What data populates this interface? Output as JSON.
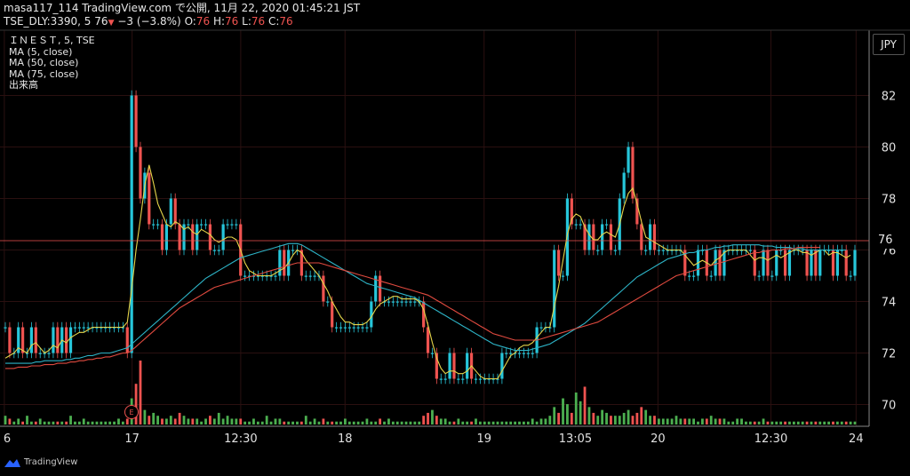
{
  "header": {
    "line1": "masa117_114 TradingView.com で公開, 11月 22, 2020 01:45:21 JST",
    "symbol": "TSE_DLY:3390, 5",
    "last": "76",
    "arrow": "▼",
    "change": "−3 (−3.8%)",
    "o_label": "O:",
    "o_val": "76",
    "h_label": "H:",
    "h_val": "76",
    "l_label": "L:",
    "l_val": "76",
    "c_label": "C:",
    "c_val": "76"
  },
  "legend": {
    "title": "ＩＮＥＳＴ, 5, TSE",
    "ma5": "MA (5, close)",
    "ma50": "MA (50, close)",
    "ma75": "MA (75, close)",
    "volume": "出来高"
  },
  "currency": "JPY",
  "price_tag": "76",
  "earnings_marker": "E",
  "branding": "TradingView",
  "colors": {
    "background": "#000000",
    "up": "#26c6da",
    "down": "#ef5350",
    "vol_up": "#4caf50",
    "vol_down": "#ef5350",
    "ma5": "#e5d44a",
    "ma50": "#2db3c6",
    "ma75": "#e04a3f",
    "grid": "#2a1010"
  },
  "chart_data": {
    "type": "candlestick",
    "y_ticks": [
      70,
      72,
      74,
      76,
      78,
      80,
      82
    ],
    "ylim": [
      69.5,
      83.5
    ],
    "x_ticks": [
      "6",
      "17",
      "12:30",
      "18",
      "19",
      "13:05",
      "20",
      "12:30",
      "24"
    ],
    "current_price": 76,
    "series": [
      {
        "name": "price",
        "values": [
          73,
          72,
          72,
          73,
          72,
          72,
          73,
          72,
          72,
          72,
          72,
          73,
          72,
          73,
          72,
          73,
          73,
          73,
          73,
          73,
          73,
          73,
          73,
          73,
          73,
          73,
          73,
          73,
          72,
          82,
          80,
          78,
          79,
          77,
          77,
          77,
          76,
          77,
          78,
          77,
          76,
          77,
          77,
          76,
          77,
          77,
          77,
          76,
          76,
          76,
          77,
          77,
          77,
          77,
          75,
          75,
          75,
          75,
          75,
          75,
          75,
          75,
          75,
          76,
          75,
          76,
          76,
          76,
          75,
          75,
          75,
          75,
          75,
          74,
          74,
          73,
          73,
          73,
          73,
          73,
          73,
          73,
          73,
          73,
          74,
          75,
          74,
          74,
          74,
          74,
          74,
          74,
          74,
          74,
          74,
          74,
          73,
          72,
          72,
          71,
          71,
          71,
          72,
          71,
          71,
          71,
          72,
          71,
          71,
          71,
          71,
          71,
          71,
          71,
          72,
          72,
          72,
          72,
          72,
          72,
          72,
          72,
          73,
          73,
          73,
          73,
          76,
          75,
          75,
          78,
          77,
          77,
          77,
          76,
          77,
          76,
          76,
          77,
          77,
          76,
          76,
          78,
          79,
          80,
          78,
          77,
          76,
          76,
          77,
          76,
          76,
          76,
          76,
          76,
          76,
          76,
          75,
          75,
          75,
          76,
          76,
          75,
          75,
          76,
          75,
          76,
          76,
          76,
          76,
          76,
          76,
          76,
          75,
          75,
          76,
          75,
          75,
          76,
          76,
          75,
          76,
          76,
          76,
          76,
          75,
          76,
          75,
          76,
          76,
          76,
          75,
          76,
          76,
          75,
          75,
          76
        ]
      },
      {
        "name": "MA (5, close)",
        "values": [
          71.8,
          71.9,
          72,
          72.2,
          72.1,
          72,
          72.3,
          72.4,
          72.2,
          72,
          72.1,
          72.3,
          72.2,
          72.5,
          72.4,
          72.6,
          72.7,
          72.8,
          72.8,
          72.9,
          73,
          73,
          73,
          73,
          73,
          73,
          73,
          73,
          73.2,
          74.5,
          76,
          77.2,
          78.5,
          79.3,
          78.6,
          77.8,
          77.4,
          77,
          76.9,
          77.1,
          77,
          76.8,
          76.9,
          76.7,
          76.6,
          76.8,
          76.7,
          76.6,
          76.4,
          76.3,
          76.4,
          76.5,
          76.5,
          76.4,
          76,
          75.5,
          75.2,
          75.1,
          75,
          75,
          75,
          75,
          75.1,
          75.2,
          75.3,
          75.5,
          75.8,
          76,
          75.9,
          75.6,
          75.4,
          75.2,
          75,
          74.7,
          74.4,
          74,
          73.7,
          73.4,
          73.2,
          73.2,
          73.1,
          73.1,
          73.1,
          73.2,
          73.4,
          73.7,
          73.9,
          74,
          74.1,
          74.2,
          74.2,
          74.1,
          74.1,
          74.1,
          74.1,
          74,
          73.7,
          73.1,
          72.4,
          71.8,
          71.4,
          71.2,
          71.3,
          71.3,
          71.2,
          71.2,
          71.3,
          71.5,
          71.3,
          71.1,
          71,
          71,
          71,
          71,
          71.3,
          71.6,
          71.9,
          72,
          72.2,
          72.3,
          72.3,
          72.4,
          72.6,
          72.8,
          73,
          73,
          73.8,
          74.6,
          75.6,
          76.6,
          77.2,
          77.4,
          77.3,
          76.9,
          76.6,
          76.4,
          76.4,
          76.6,
          76.7,
          76.6,
          76.5,
          77,
          77.7,
          78.2,
          78.4,
          77.8,
          77.1,
          76.5,
          76.4,
          76.3,
          76.2,
          76.1,
          76,
          76,
          76,
          76,
          75.8,
          75.6,
          75.4,
          75.5,
          75.6,
          75.5,
          75.4,
          75.6,
          75.7,
          75.9,
          76,
          76,
          76,
          76,
          76,
          75.8,
          75.6,
          75.7,
          75.7,
          75.6,
          75.7,
          75.8,
          75.7,
          75.8,
          75.9,
          76,
          76,
          75.9,
          75.9,
          75.8,
          75.9,
          76,
          76,
          75.8,
          75.9,
          75.9,
          75.8,
          75.7,
          75.8
        ]
      },
      {
        "name": "MA (50, close)",
        "values": [
          71.6,
          71.6,
          71.6,
          71.6,
          71.6,
          71.6,
          71.6,
          71.65,
          71.65,
          71.7,
          71.7,
          71.7,
          71.7,
          71.7,
          71.75,
          71.75,
          71.8,
          71.8,
          71.85,
          71.9,
          71.9,
          71.95,
          72,
          72,
          72,
          72.05,
          72.1,
          72.15,
          72.2,
          72.35,
          72.5,
          72.65,
          72.8,
          72.95,
          73.1,
          73.25,
          73.4,
          73.55,
          73.7,
          73.85,
          74,
          74.15,
          74.3,
          74.45,
          74.6,
          74.75,
          74.9,
          75,
          75.1,
          75.2,
          75.3,
          75.4,
          75.5,
          75.6,
          75.7,
          75.75,
          75.8,
          75.85,
          75.9,
          75.95,
          76,
          76.05,
          76.1,
          76.15,
          76.2,
          76.25,
          76.25,
          76.25,
          76.2,
          76.1,
          76,
          75.9,
          75.8,
          75.7,
          75.6,
          75.5,
          75.4,
          75.3,
          75.2,
          75.1,
          75,
          74.9,
          74.8,
          74.7,
          74.65,
          74.6,
          74.55,
          74.5,
          74.45,
          74.4,
          74.35,
          74.3,
          74.25,
          74.2,
          74.15,
          74.05,
          73.95,
          73.85,
          73.75,
          73.65,
          73.55,
          73.45,
          73.35,
          73.25,
          73.15,
          73.05,
          72.95,
          72.85,
          72.75,
          72.65,
          72.55,
          72.45,
          72.35,
          72.3,
          72.25,
          72.2,
          72.15,
          72.1,
          72.1,
          72.1,
          72.1,
          72.15,
          72.2,
          72.25,
          72.3,
          72.35,
          72.45,
          72.55,
          72.65,
          72.75,
          72.85,
          72.95,
          73.05,
          73.15,
          73.3,
          73.45,
          73.6,
          73.75,
          73.9,
          74.05,
          74.2,
          74.35,
          74.5,
          74.65,
          74.8,
          74.95,
          75.05,
          75.15,
          75.25,
          75.35,
          75.45,
          75.55,
          75.65,
          75.7,
          75.75,
          75.8,
          75.85,
          75.9,
          75.9,
          75.95,
          76,
          76,
          76.05,
          76.1,
          76.1,
          76.15,
          76.15,
          76.2,
          76.2,
          76.2,
          76.2,
          76.2,
          76.2,
          76.2,
          76.15,
          76.15,
          76.15,
          76.1,
          76.1,
          76.1,
          76.1,
          76.05,
          76.05,
          76.05,
          76,
          76,
          76,
          76,
          76,
          76,
          76,
          76,
          76,
          76
        ]
      },
      {
        "name": "MA (75, close)",
        "values": [
          71.4,
          71.4,
          71.4,
          71.45,
          71.45,
          71.45,
          71.5,
          71.5,
          71.5,
          71.55,
          71.55,
          71.55,
          71.6,
          71.6,
          71.6,
          71.65,
          71.65,
          71.7,
          71.7,
          71.75,
          71.75,
          71.8,
          71.8,
          71.85,
          71.85,
          71.9,
          71.95,
          72,
          72,
          72.1,
          72.25,
          72.4,
          72.55,
          72.7,
          72.85,
          73,
          73.15,
          73.3,
          73.45,
          73.6,
          73.75,
          73.85,
          73.95,
          74.05,
          74.15,
          74.25,
          74.35,
          74.45,
          74.55,
          74.6,
          74.65,
          74.7,
          74.75,
          74.8,
          74.85,
          74.9,
          74.95,
          75,
          75.05,
          75.1,
          75.15,
          75.2,
          75.25,
          75.3,
          75.35,
          75.4,
          75.45,
          75.5,
          75.5,
          75.5,
          75.5,
          75.5,
          75.5,
          75.45,
          75.4,
          75.35,
          75.3,
          75.25,
          75.2,
          75.15,
          75.1,
          75.05,
          75,
          74.95,
          74.9,
          74.85,
          74.8,
          74.75,
          74.7,
          74.65,
          74.6,
          74.55,
          74.5,
          74.45,
          74.4,
          74.35,
          74.3,
          74.25,
          74.15,
          74.05,
          73.95,
          73.85,
          73.75,
          73.65,
          73.55,
          73.45,
          73.35,
          73.25,
          73.15,
          73.05,
          72.95,
          72.85,
          72.75,
          72.7,
          72.65,
          72.6,
          72.55,
          72.5,
          72.5,
          72.5,
          72.5,
          72.5,
          72.5,
          72.55,
          72.6,
          72.65,
          72.7,
          72.75,
          72.8,
          72.85,
          72.9,
          72.95,
          73,
          73.05,
          73.1,
          73.15,
          73.2,
          73.3,
          73.4,
          73.5,
          73.6,
          73.7,
          73.8,
          73.9,
          74,
          74.1,
          74.2,
          74.3,
          74.4,
          74.5,
          74.6,
          74.7,
          74.8,
          74.9,
          75,
          75.05,
          75.1,
          75.15,
          75.2,
          75.25,
          75.3,
          75.35,
          75.4,
          75.45,
          75.5,
          75.55,
          75.6,
          75.65,
          75.7,
          75.75,
          75.8,
          75.85,
          75.9,
          75.9,
          75.95,
          75.95,
          76,
          76,
          76,
          76.05,
          76.05,
          76.05,
          76.1,
          76.1,
          76.1,
          76.1,
          76.1,
          76.1
        ]
      },
      {
        "name": "出来高",
        "values": [
          3,
          2,
          1,
          2,
          1,
          3,
          1,
          1,
          2,
          1,
          1,
          1,
          1,
          1,
          1,
          3,
          1,
          1,
          2,
          1,
          1,
          1,
          1,
          1,
          1,
          1,
          2,
          1,
          2,
          9,
          14,
          22,
          5,
          3,
          4,
          3,
          2,
          2,
          3,
          2,
          4,
          3,
          2,
          2,
          2,
          1,
          2,
          3,
          2,
          4,
          2,
          3,
          2,
          2,
          2,
          1,
          1,
          2,
          1,
          1,
          3,
          1,
          2,
          2,
          1,
          1,
          1,
          1,
          1,
          3,
          1,
          2,
          1,
          2,
          1,
          1,
          1,
          1,
          2,
          1,
          1,
          1,
          1,
          2,
          1,
          1,
          2,
          1,
          2,
          1,
          1,
          1,
          1,
          1,
          1,
          1,
          3,
          4,
          5,
          3,
          2,
          2,
          1,
          1,
          2,
          1,
          1,
          1,
          2,
          1,
          1,
          1,
          1,
          1,
          1,
          1,
          1,
          1,
          1,
          1,
          1,
          2,
          1,
          2,
          2,
          3,
          6,
          4,
          9,
          7,
          4,
          11,
          8,
          13,
          6,
          4,
          3,
          5,
          4,
          3,
          3,
          3,
          4,
          5,
          3,
          4,
          6,
          5,
          3,
          3,
          2,
          2,
          2,
          2,
          3,
          2,
          2,
          2,
          2,
          1,
          2,
          2,
          3,
          2,
          2,
          2,
          1,
          1,
          2,
          2,
          1,
          1,
          1,
          1,
          2,
          1,
          1,
          1,
          1,
          1,
          1,
          1,
          1,
          1,
          1,
          1,
          1,
          1,
          1,
          1,
          1,
          1,
          1,
          1,
          1,
          1
        ]
      }
    ]
  }
}
